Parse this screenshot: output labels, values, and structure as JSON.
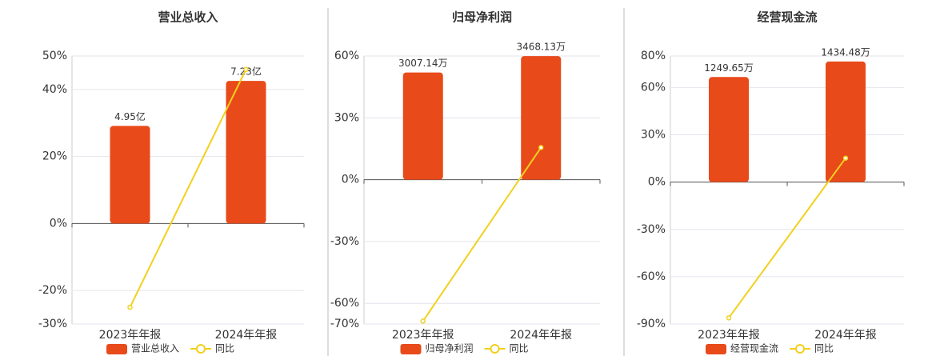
{
  "chart_data": [
    {
      "type": "bar",
      "title": "营业总收入",
      "categories": [
        "2023年年报",
        "2024年年报"
      ],
      "series": [
        {
          "name": "营业总收入",
          "type": "bar",
          "axis": "y2",
          "color": "#e84a1a",
          "values": [
            4.95,
            7.23
          ],
          "value_labels": [
            "4.95亿",
            "7.23亿"
          ]
        },
        {
          "name": "同比",
          "type": "line",
          "color": "#f2d01e",
          "values": [
            -25,
            46
          ]
        }
      ],
      "ylim": [
        -30,
        50
      ],
      "yticks": [
        {
          "value": 50,
          "label": "50%"
        },
        {
          "value": 40,
          "label": "40%"
        },
        {
          "value": 20,
          "label": "20%"
        },
        {
          "value": 0,
          "label": "0%"
        },
        {
          "value": -20,
          "label": "-20%"
        },
        {
          "value": -30,
          "label": "-30%"
        }
      ],
      "y2lim": [
        -5.09,
        8.49
      ],
      "grid": true
    },
    {
      "type": "bar",
      "title": "归母净利润",
      "categories": [
        "2023年年报",
        "2024年年报"
      ],
      "series": [
        {
          "name": "归母净利润",
          "type": "bar",
          "axis": "y2",
          "color": "#e84a1a",
          "values": [
            3007.14,
            3468.13
          ],
          "value_labels": [
            "3007.14万",
            "3468.13万"
          ]
        },
        {
          "name": "同比",
          "type": "line",
          "color": "#f2d01e",
          "values": [
            -68.6,
            15.6
          ]
        }
      ],
      "ylim": [
        -70,
        60
      ],
      "yticks": [
        {
          "value": 60,
          "label": "60%"
        },
        {
          "value": 30,
          "label": "30%"
        },
        {
          "value": 0,
          "label": "0%"
        },
        {
          "value": -30,
          "label": "-30%"
        },
        {
          "value": -60,
          "label": "-60%"
        },
        {
          "value": -70,
          "label": "-70%"
        }
      ],
      "y2lim": [
        -4050,
        3470
      ],
      "grid": true
    },
    {
      "type": "bar",
      "title": "经营现金流",
      "categories": [
        "2023年年报",
        "2024年年报"
      ],
      "series": [
        {
          "name": "经营现金流",
          "type": "bar",
          "axis": "y2",
          "color": "#e84a1a",
          "values": [
            1249.65,
            1434.48
          ],
          "value_labels": [
            "1249.65万",
            "1434.48万"
          ]
        },
        {
          "name": "同比",
          "type": "line",
          "color": "#f2d01e",
          "values": [
            -86.1,
            15.2
          ]
        }
      ],
      "ylim": [
        -90,
        80
      ],
      "yticks": [
        {
          "value": 80,
          "label": "80%"
        },
        {
          "value": 60,
          "label": "60%"
        },
        {
          "value": 30,
          "label": "30%"
        },
        {
          "value": 0,
          "label": "0%"
        },
        {
          "value": -30,
          "label": "-30%"
        },
        {
          "value": -60,
          "label": "-60%"
        },
        {
          "value": -90,
          "label": "-90%"
        }
      ],
      "y2lim": [
        -1688,
        1500
      ],
      "grid": true
    }
  ]
}
